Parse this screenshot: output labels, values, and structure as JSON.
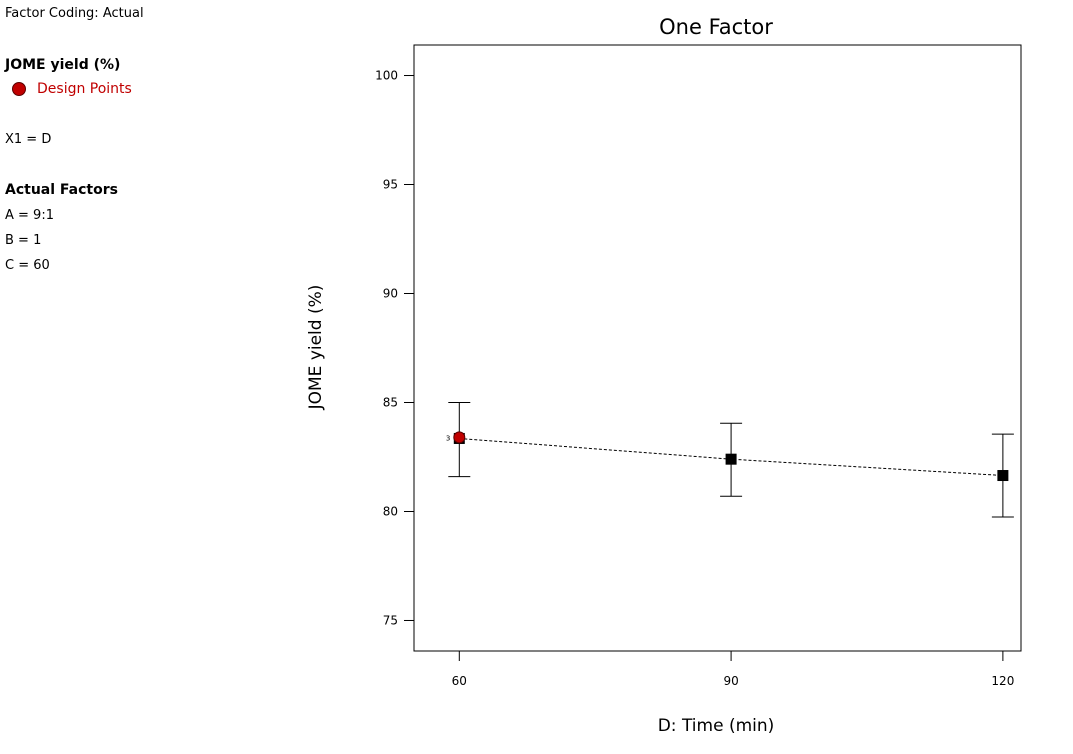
{
  "side_panel": {
    "factor_coding": "Factor Coding: Actual",
    "response_title": "JOME yield (%)",
    "legend_label": "Design Points",
    "x1": "X1 = D",
    "actual_factors_title": "Actual Factors",
    "factors": [
      "A = 9:1",
      "B = 1",
      "C = 60"
    ]
  },
  "colors": {
    "design_point": "#c00000",
    "marker": "#000000"
  },
  "chart_data": {
    "type": "line",
    "title": "One Factor",
    "xlabel": "D: Time (min)",
    "ylabel": "JOME yield (%)",
    "xlim": [
      55,
      122
    ],
    "ylim": [
      73.6,
      101.4
    ],
    "x_ticks": [
      60,
      90,
      120
    ],
    "y_ticks": [
      75,
      80,
      85,
      90,
      95,
      100
    ],
    "grid": false,
    "series": [
      {
        "x": [
          60,
          90,
          120
        ],
        "y": [
          83.35,
          82.4,
          81.65
        ],
        "error_low": [
          81.6,
          80.7,
          79.75
        ],
        "error_high": [
          85.0,
          84.05,
          83.55
        ]
      }
    ],
    "design_points": [
      {
        "x": 60,
        "y": 83.4,
        "count": "3"
      }
    ]
  }
}
